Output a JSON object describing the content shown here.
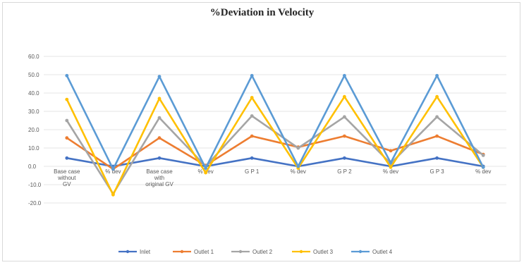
{
  "chart_data": {
    "type": "line",
    "title": "%Deviation in Velocity",
    "xlabel": "",
    "ylabel": "",
    "ylim": [
      -20,
      60
    ],
    "y_ticks": [
      "60.0",
      "50.0",
      "40.0",
      "30.0",
      "20.0",
      "10.0",
      "0.0",
      "-10.0",
      "-20.0"
    ],
    "y_tick_values": [
      60,
      50,
      40,
      30,
      20,
      10,
      0,
      -10,
      -20
    ],
    "categories": [
      [
        "Base case",
        "without",
        "GV"
      ],
      [
        "% dev"
      ],
      [
        "Base case",
        "with",
        "original GV"
      ],
      [
        "% dev"
      ],
      [
        "G P 1"
      ],
      [
        "% dev"
      ],
      [
        "G P 2"
      ],
      [
        "% dev"
      ],
      [
        "G P 3"
      ],
      [
        "% dev"
      ]
    ],
    "grid": true,
    "legend_position": "bottom",
    "series": [
      {
        "name": "Inlet",
        "color": "#4472c4",
        "values": [
          4.5,
          0,
          4.5,
          0,
          4.5,
          0,
          4.5,
          0,
          4.5,
          0
        ]
      },
      {
        "name": "Outlet 1",
        "color": "#ed7d31",
        "values": [
          15.5,
          -1.5,
          15.5,
          0.5,
          16.5,
          10.5,
          16.5,
          8.5,
          16.5,
          6.5
        ]
      },
      {
        "name": "Outlet 2",
        "color": "#a5a5a5",
        "values": [
          25,
          -15,
          26.5,
          0,
          27.5,
          10,
          27,
          1.5,
          27,
          6
        ]
      },
      {
        "name": "Outlet 3",
        "color": "#ffc000",
        "values": [
          36.5,
          -15.5,
          37,
          -3.5,
          37.5,
          -1,
          38,
          -0.5,
          38,
          -0.5
        ]
      },
      {
        "name": "Outlet 4",
        "color": "#5b9bd5",
        "values": [
          49.5,
          -1.5,
          49,
          -1,
          49.5,
          0,
          49.5,
          2,
          49.5,
          -0.5
        ]
      }
    ]
  }
}
